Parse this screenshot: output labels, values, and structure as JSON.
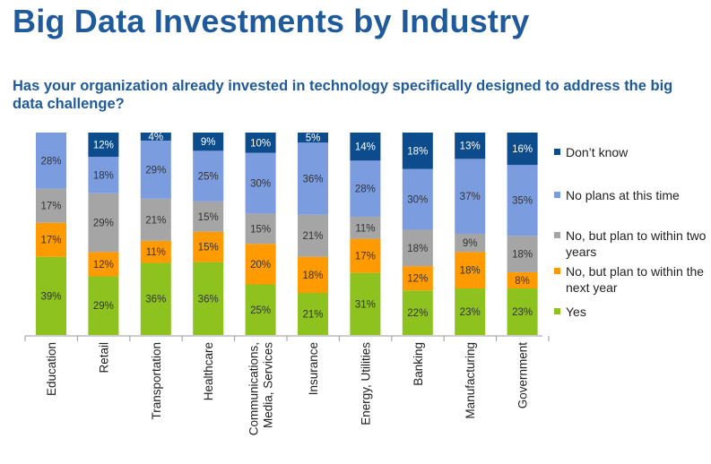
{
  "header": {
    "title": "Big Data Investments by Industry",
    "subtitle": "Has your organization already invested in technology specifically designed to address the big data challenge?"
  },
  "colors": {
    "yes": "#8dc21f",
    "next_year": "#ff9a00",
    "two_years": "#a5a5a5",
    "no_plans": "#7b9de0",
    "dont_know": "#0c4b8c"
  },
  "chart_data": {
    "type": "bar",
    "stacked": true,
    "percent_stacked": true,
    "title": "Big Data Investments by Industry",
    "subtitle": "Has your organization already invested in technology specifically designed to address the big data challenge?",
    "categories": [
      "Education",
      "Retail",
      "Transportation",
      "Healthcare",
      "Communications, Media, Services",
      "Insurance",
      "Energy, Utilities",
      "Banking",
      "Manufacturing",
      "Government"
    ],
    "series": [
      {
        "key": "yes",
        "name": "Yes",
        "values": [
          39,
          29,
          36,
          36,
          25,
          21,
          31,
          22,
          23,
          23
        ]
      },
      {
        "key": "next_year",
        "name": "No, but plan to within the next year",
        "values": [
          17,
          12,
          11,
          15,
          20,
          18,
          17,
          12,
          18,
          8
        ]
      },
      {
        "key": "two_years",
        "name": "No, but plan to within two years",
        "values": [
          17,
          29,
          21,
          15,
          15,
          21,
          11,
          18,
          9,
          18
        ]
      },
      {
        "key": "no_plans",
        "name": "No plans at this time",
        "values": [
          28,
          18,
          29,
          25,
          30,
          36,
          28,
          30,
          37,
          35
        ]
      },
      {
        "key": "dont_know",
        "name": "Don't know",
        "values": [
          0,
          12,
          4,
          9,
          10,
          5,
          14,
          18,
          13,
          16
        ]
      }
    ],
    "labels": [
      [
        "39%",
        "29%",
        "36%",
        "36%",
        "25%",
        "21%",
        "31%",
        "22%",
        "23%",
        "23%"
      ],
      [
        "17%",
        "12%",
        "11%",
        "15%",
        "20%",
        "18%",
        "17%",
        "12%",
        "18%",
        "8%"
      ],
      [
        "17%",
        "29%",
        "21%",
        "15%",
        "15%",
        "21%",
        "11%",
        "18%",
        "9%",
        "18%"
      ],
      [
        "28%",
        "18%",
        "29%",
        "25%",
        "30%",
        "36%",
        "28%",
        "30%",
        "37%",
        "35%"
      ],
      [
        "",
        "12%",
        "4%",
        "9%",
        "10%",
        "5%",
        "14%",
        "18%",
        "13%",
        "16%"
      ]
    ],
    "legend": [
      {
        "key": "dont_know",
        "label": "Don’t know"
      },
      {
        "key": "no_plans",
        "label": "No plans at this time"
      },
      {
        "key": "two_years",
        "label": "No, but plan to within two years"
      },
      {
        "key": "next_year",
        "label": "No, but plan to within the next year"
      },
      {
        "key": "yes",
        "label": "Yes"
      }
    ],
    "legend_position": "right",
    "ylim": [
      0,
      100
    ],
    "xlabel": "",
    "ylabel": ""
  }
}
